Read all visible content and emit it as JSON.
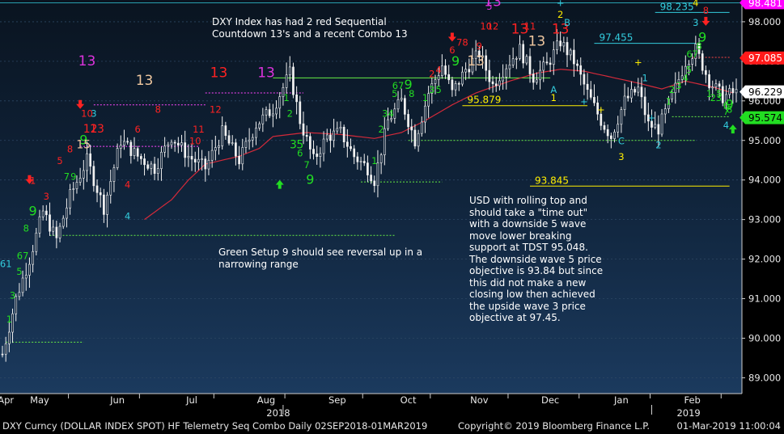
{
  "chart_data": {
    "type": "candlestick",
    "title": "",
    "xlabel": "",
    "ylabel": "",
    "ylim": [
      88.6,
      98.55
    ],
    "y_ticks": [
      89.0,
      90.0,
      91.0,
      92.0,
      93.0,
      94.0,
      95.0,
      96.0,
      97.0,
      98.0
    ],
    "y_tick_labels": [
      "89.000",
      "90.000",
      "91.000",
      "92.000",
      "93.000",
      "94.000",
      "95.000",
      "96.000",
      "97.000",
      "98.000"
    ],
    "x_months": [
      "Apr",
      "May",
      "Jun",
      "Jul",
      "Aug",
      "Sep",
      "Oct",
      "Nov",
      "Dec",
      "Jan",
      "Feb"
    ],
    "x_years": [
      "2018",
      "2019"
    ],
    "close_anchors": [
      [
        0,
        89.6
      ],
      [
        4,
        91.0
      ],
      [
        8,
        92.0
      ],
      [
        12,
        93.2
      ],
      [
        16,
        92.5
      ],
      [
        20,
        93.6
      ],
      [
        25,
        94.5
      ],
      [
        30,
        93.3
      ],
      [
        35,
        95.0
      ],
      [
        40,
        94.6
      ],
      [
        45,
        94.3
      ],
      [
        50,
        95.1
      ],
      [
        55,
        94.6
      ],
      [
        60,
        94.3
      ],
      [
        65,
        95.2
      ],
      [
        70,
        94.5
      ],
      [
        75,
        95.4
      ],
      [
        80,
        95.8
      ],
      [
        85,
        96.7
      ],
      [
        88,
        95.5
      ],
      [
        92,
        94.5
      ],
      [
        96,
        95.1
      ],
      [
        100,
        95.2
      ],
      [
        104,
        94.6
      ],
      [
        108,
        94.3
      ],
      [
        110,
        94.0
      ],
      [
        114,
        95.5
      ],
      [
        118,
        96.0
      ],
      [
        122,
        95.0
      ],
      [
        126,
        96.2
      ],
      [
        130,
        96.9
      ],
      [
        133,
        96.2
      ],
      [
        137,
        96.8
      ],
      [
        141,
        97.2
      ],
      [
        145,
        96.4
      ],
      [
        149,
        96.9
      ],
      [
        153,
        97.3
      ],
      [
        157,
        96.6
      ],
      [
        161,
        96.9
      ],
      [
        165,
        97.5
      ],
      [
        169,
        97.0
      ],
      [
        173,
        96.2
      ],
      [
        177,
        95.5
      ],
      [
        180,
        95.1
      ],
      [
        184,
        96.0
      ],
      [
        188,
        96.3
      ],
      [
        191,
        95.4
      ],
      [
        194,
        95.3
      ],
      [
        198,
        96.1
      ],
      [
        202,
        97.0
      ],
      [
        205,
        97.3
      ],
      [
        209,
        96.5
      ],
      [
        213,
        96.1
      ],
      [
        216,
        96.2
      ]
    ],
    "ma_series": {
      "name": "",
      "values": [
        [
          42,
          93.0
        ],
        [
          50,
          93.5
        ],
        [
          55,
          94.0
        ],
        [
          60,
          94.4
        ],
        [
          70,
          94.6
        ],
        [
          76,
          94.8
        ],
        [
          80,
          95.1
        ],
        [
          90,
          95.2
        ],
        [
          100,
          95.15
        ],
        [
          110,
          95.05
        ],
        [
          118,
          95.2
        ],
        [
          125,
          95.5
        ],
        [
          133,
          95.9
        ],
        [
          140,
          96.2
        ],
        [
          150,
          96.5
        ],
        [
          158,
          96.7
        ],
        [
          165,
          96.8
        ],
        [
          172,
          96.75
        ],
        [
          180,
          96.6
        ],
        [
          188,
          96.45
        ],
        [
          195,
          96.3
        ],
        [
          202,
          96.5
        ],
        [
          210,
          96.35
        ],
        [
          216,
          96.2
        ]
      ]
    },
    "price_labels": [
      {
        "value": 98.481,
        "text": "98.481",
        "color": "#ff00ff",
        "text_color": "#ffffff"
      },
      {
        "value": 97.085,
        "text": "97.085",
        "color": "#ff1a1a",
        "text_color": "#ffffff"
      },
      {
        "value": 96.229,
        "text": "96.229",
        "color": "#ffffff",
        "text_color": "#000000"
      },
      {
        "value": 95.574,
        "text": "95.574",
        "color": "#22dd22",
        "text_color": "#000000"
      }
    ],
    "levels": [
      {
        "value": 98.235,
        "text": "98.235",
        "from": 193,
        "to": 215,
        "color": "#33ccdd",
        "style": "solid"
      },
      {
        "value": 97.455,
        "text": "97.455",
        "from": 175,
        "to": 205,
        "color": "#33ccdd",
        "style": "solid"
      },
      {
        "value": 95.879,
        "text": "95.879",
        "from": 136,
        "to": 173,
        "color": "#ffee00",
        "style": "solid"
      },
      {
        "value": 93.845,
        "text": "93.845",
        "from": 156,
        "to": 215,
        "color": "#ffee00",
        "style": "solid"
      },
      {
        "value": 96.58,
        "text": "",
        "from": 80,
        "to": 162,
        "color": "#66ee44",
        "style": "solid"
      },
      {
        "value": 95.0,
        "text": "",
        "from": 120,
        "to": 205,
        "color": "#66ee44",
        "style": "dotted"
      },
      {
        "value": 92.6,
        "text": "",
        "from": 14,
        "to": 116,
        "color": "#66ee44",
        "style": "dotted"
      },
      {
        "value": 89.9,
        "text": "",
        "from": 1,
        "to": 24,
        "color": "#66ee44",
        "style": "dotted"
      },
      {
        "value": 93.95,
        "text": "",
        "from": 106,
        "to": 130,
        "color": "#66ee44",
        "style": "dotted"
      },
      {
        "value": 95.6,
        "text": "",
        "from": 198,
        "to": 215,
        "color": "#66ee44",
        "style": "dotted"
      },
      {
        "value": 96.2,
        "text": "",
        "from": 60,
        "to": 89,
        "color": "#ff44ff",
        "style": "dotted"
      },
      {
        "value": 95.9,
        "text": "",
        "from": 27,
        "to": 60,
        "color": "#ff44ff",
        "style": "dotted"
      },
      {
        "value": 94.85,
        "text": "",
        "from": 23,
        "to": 58,
        "color": "#ff44ff",
        "style": "dotted"
      },
      {
        "value": 97.1,
        "text": "",
        "from": 204,
        "to": 215,
        "color": "#ff4444",
        "style": "dotted"
      }
    ],
    "markers": [
      {
        "x": 1,
        "y": 91.8,
        "text": "61",
        "color": "#33ccdd"
      },
      {
        "x": 2,
        "y": 90.4,
        "text": "1",
        "color": "#22dd22"
      },
      {
        "x": 3,
        "y": 91.0,
        "text": "3",
        "color": "#22dd22"
      },
      {
        "x": 5,
        "y": 91.6,
        "text": "5",
        "color": "#22dd22"
      },
      {
        "x": 6,
        "y": 92.0,
        "text": "67",
        "color": "#22dd22"
      },
      {
        "x": 7,
        "y": 92.7,
        "text": "8",
        "color": "#22dd22"
      },
      {
        "x": 9,
        "y": 93.1,
        "text": "9",
        "color": "#22dd22",
        "size": 16
      },
      {
        "x": 9,
        "y": 93.9,
        "text": "1",
        "color": "#ff2222"
      },
      {
        "x": 13,
        "y": 93.5,
        "text": "3",
        "color": "#ff2222"
      },
      {
        "x": 17,
        "y": 94.4,
        "text": "5",
        "color": "#ff2222"
      },
      {
        "x": 19,
        "y": 94.0,
        "text": "7",
        "color": "#22dd22"
      },
      {
        "x": 20,
        "y": 94.7,
        "text": "8",
        "color": "#ff2222"
      },
      {
        "x": 21,
        "y": 94.0,
        "text": "9",
        "color": "#22dd22"
      },
      {
        "x": 24,
        "y": 94.9,
        "text": "9",
        "color": "#22dd22",
        "size": 16
      },
      {
        "x": 25,
        "y": 96.9,
        "text": "13",
        "color": "#dd33dd",
        "size": 17
      },
      {
        "x": 25,
        "y": 95.6,
        "text": "10",
        "color": "#ff2222"
      },
      {
        "x": 27,
        "y": 95.6,
        "text": "3",
        "color": "#33ccdd"
      },
      {
        "x": 26,
        "y": 95.2,
        "text": "12",
        "color": "#ff2222",
        "size": 14
      },
      {
        "x": 28,
        "y": 95.2,
        "text": "13",
        "color": "#ff2222",
        "size": 14
      },
      {
        "x": 24,
        "y": 94.8,
        "text": "15",
        "color": "#f0c8a0",
        "size": 14
      },
      {
        "x": 37,
        "y": 93.8,
        "text": "4",
        "color": "#ff2222"
      },
      {
        "x": 37,
        "y": 93.0,
        "text": "4",
        "color": "#33ccdd"
      },
      {
        "x": 42,
        "y": 96.4,
        "text": "13",
        "color": "#f0c8a0",
        "size": 17
      },
      {
        "x": 40,
        "y": 95.2,
        "text": "6",
        "color": "#ff2222"
      },
      {
        "x": 46,
        "y": 95.7,
        "text": "8",
        "color": "#ff2222"
      },
      {
        "x": 57,
        "y": 94.9,
        "text": "10",
        "color": "#ff2222"
      },
      {
        "x": 58,
        "y": 95.2,
        "text": "11",
        "color": "#ff2222"
      },
      {
        "x": 63,
        "y": 95.7,
        "text": "12",
        "color": "#ff2222"
      },
      {
        "x": 64,
        "y": 96.6,
        "text": "13",
        "color": "#ff2222",
        "size": 17
      },
      {
        "x": 78,
        "y": 96.6,
        "text": "13",
        "color": "#dd33dd",
        "size": 17
      },
      {
        "x": 84,
        "y": 96.0,
        "text": "1",
        "color": "#22dd22"
      },
      {
        "x": 85,
        "y": 95.6,
        "text": "2",
        "color": "#22dd22"
      },
      {
        "x": 86,
        "y": 94.8,
        "text": "3",
        "color": "#22dd22",
        "size": 14
      },
      {
        "x": 88,
        "y": 94.8,
        "text": "5",
        "color": "#22dd22",
        "size": 14
      },
      {
        "x": 88,
        "y": 94.6,
        "text": "6",
        "color": "#22dd22"
      },
      {
        "x": 90,
        "y": 94.3,
        "text": "7",
        "color": "#22dd22"
      },
      {
        "x": 91,
        "y": 93.9,
        "text": "9",
        "color": "#22dd22",
        "size": 16
      },
      {
        "x": 110,
        "y": 94.4,
        "text": "1",
        "color": "#22dd22"
      },
      {
        "x": 112,
        "y": 95.2,
        "text": "2",
        "color": "#22dd22"
      },
      {
        "x": 114,
        "y": 95.6,
        "text": "34",
        "color": "#22dd22"
      },
      {
        "x": 116,
        "y": 96.1,
        "text": "5",
        "color": "#22dd22"
      },
      {
        "x": 117,
        "y": 96.3,
        "text": "67",
        "color": "#22dd22"
      },
      {
        "x": 120,
        "y": 96.3,
        "text": "9",
        "color": "#22dd22",
        "size": 16
      },
      {
        "x": 121,
        "y": 96.1,
        "text": "8",
        "color": "#22dd22"
      },
      {
        "x": 125,
        "y": 96.0,
        "text": "1",
        "color": "#22dd22"
      },
      {
        "x": 127,
        "y": 96.2,
        "text": "3",
        "color": "#22dd22"
      },
      {
        "x": 129,
        "y": 96.2,
        "text": "5",
        "color": "#22dd22"
      },
      {
        "x": 127,
        "y": 96.6,
        "text": "2",
        "color": "#ff2222"
      },
      {
        "x": 129,
        "y": 96.7,
        "text": "4",
        "color": "#ff2222"
      },
      {
        "x": 133,
        "y": 97.2,
        "text": "6",
        "color": "#ff2222"
      },
      {
        "x": 134,
        "y": 96.9,
        "text": "9",
        "color": "#22dd22",
        "size": 16
      },
      {
        "x": 136,
        "y": 97.4,
        "text": "78",
        "color": "#ff2222"
      },
      {
        "x": 140,
        "y": 96.9,
        "text": "13",
        "color": "#f0c8a0",
        "size": 17
      },
      {
        "x": 141,
        "y": 97.3,
        "text": "9",
        "color": "#ff2222"
      },
      {
        "x": 143,
        "y": 97.8,
        "text": "10",
        "color": "#ff2222"
      },
      {
        "x": 145,
        "y": 97.8,
        "text": "12",
        "color": "#ff2222"
      },
      {
        "x": 144,
        "y": 98.3,
        "text": "5",
        "color": "#dd33dd"
      },
      {
        "x": 145,
        "y": 98.4,
        "text": "13",
        "color": "#dd33dd",
        "size": 17
      },
      {
        "x": 153,
        "y": 97.7,
        "text": "13",
        "color": "#ff2222",
        "size": 17
      },
      {
        "x": 156,
        "y": 97.8,
        "text": "11",
        "color": "#ff2222"
      },
      {
        "x": 158,
        "y": 97.4,
        "text": "13",
        "color": "#f0c8a0",
        "size": 17
      },
      {
        "x": 165,
        "y": 97.7,
        "text": "13",
        "color": "#ff2222",
        "size": 17
      },
      {
        "x": 165,
        "y": 98.1,
        "text": "2",
        "color": "#ffee00"
      },
      {
        "x": 165,
        "y": 98.4,
        "text": "+",
        "color": "#33ccdd"
      },
      {
        "x": 167,
        "y": 97.9,
        "text": "B",
        "color": "#33ccdd"
      },
      {
        "x": 163,
        "y": 96.2,
        "text": "A",
        "color": "#33ccdd"
      },
      {
        "x": 163,
        "y": 96.0,
        "text": "1",
        "color": "#ffee00"
      },
      {
        "x": 172,
        "y": 95.9,
        "text": "+",
        "color": "#33ccdd"
      },
      {
        "x": 177,
        "y": 95.7,
        "text": "+",
        "color": "#ffee00"
      },
      {
        "x": 188,
        "y": 96.9,
        "text": "+",
        "color": "#ffee00"
      },
      {
        "x": 190,
        "y": 96.5,
        "text": "1",
        "color": "#33ccdd"
      },
      {
        "x": 183,
        "y": 94.9,
        "text": "C",
        "color": "#33ccdd"
      },
      {
        "x": 183,
        "y": 94.5,
        "text": "3",
        "color": "#ffee00"
      },
      {
        "x": 192,
        "y": 95.5,
        "text": "+",
        "color": "#33ccdd"
      },
      {
        "x": 194,
        "y": 94.8,
        "text": "2",
        "color": "#33ccdd"
      },
      {
        "x": 197,
        "y": 95.9,
        "text": "1",
        "color": "#22dd22"
      },
      {
        "x": 198,
        "y": 96.2,
        "text": "2",
        "color": "#22dd22"
      },
      {
        "x": 200,
        "y": 96.3,
        "text": "3",
        "color": "#22dd22"
      },
      {
        "x": 202,
        "y": 96.5,
        "text": "4",
        "color": "#22dd22"
      },
      {
        "x": 203,
        "y": 96.7,
        "text": "5",
        "color": "#22dd22"
      },
      {
        "x": 204,
        "y": 97.1,
        "text": "67",
        "color": "#22dd22"
      },
      {
        "x": 206,
        "y": 97.3,
        "text": "8",
        "color": "#22dd22"
      },
      {
        "x": 207,
        "y": 97.5,
        "text": "9",
        "color": "#22dd22",
        "size": 16
      },
      {
        "x": 205,
        "y": 97.9,
        "text": "3",
        "color": "#33ccdd"
      },
      {
        "x": 205,
        "y": 98.4,
        "text": "4",
        "color": "#ffee00"
      },
      {
        "x": 208,
        "y": 98.2,
        "text": "8",
        "color": "#ff2222"
      },
      {
        "x": 209,
        "y": 96.1,
        "text": "1",
        "color": "#22dd22"
      },
      {
        "x": 211,
        "y": 96.0,
        "text": "23",
        "color": "#22dd22"
      },
      {
        "x": 212,
        "y": 96.1,
        "text": "5",
        "color": "#22dd22"
      },
      {
        "x": 214,
        "y": 95.8,
        "text": "6",
        "color": "#22dd22"
      },
      {
        "x": 215,
        "y": 95.8,
        "text": "9",
        "color": "#22dd22",
        "size": 16
      },
      {
        "x": 214,
        "y": 95.3,
        "text": "4",
        "color": "#33ccdd"
      },
      {
        "x": 214,
        "y": 95.65,
        "text": "7",
        "color": "#22dd22"
      },
      {
        "x": 215,
        "y": 95.7,
        "text": "8",
        "color": "#22dd22"
      }
    ],
    "arrows": [
      {
        "x": 8,
        "y": 94.0,
        "dir": "down",
        "color": "#ff2222"
      },
      {
        "x": 23,
        "y": 95.9,
        "dir": "down",
        "color": "#ff2222"
      },
      {
        "x": 82,
        "y": 93.9,
        "dir": "up",
        "color": "#22dd22"
      },
      {
        "x": 133,
        "y": 97.6,
        "dir": "down",
        "color": "#ff2222"
      },
      {
        "x": 208,
        "y": 98.0,
        "dir": "down",
        "color": "#ff2222"
      },
      {
        "x": 216,
        "y": 95.3,
        "dir": "up",
        "color": "#22dd22"
      }
    ]
  },
  "annotations": {
    "top": "DXY Index has had 2 red Sequential Countdown 13's and a recent Combo 13",
    "middle": "Green Setup 9 should see reversal up in a narrowing range",
    "right": "USD with rolling top and should take a \"time out\" with a downside 5 wave move lower breaking support at TDST 95.048.  The downside wave 5 price objective is 93.84 but since this did not make a new closing low then achieved the upside wave 3 price objective at 97.45."
  },
  "footer": {
    "left": "DXY Curncy (DOLLAR INDEX SPOT) HF Telemetry Seq Combo  Daily 02SEP2018-01MAR2019",
    "middle": "Copyright© 2019 Bloomberg Finance L.P.",
    "right": "01-Mar-2019 11:00:04"
  }
}
